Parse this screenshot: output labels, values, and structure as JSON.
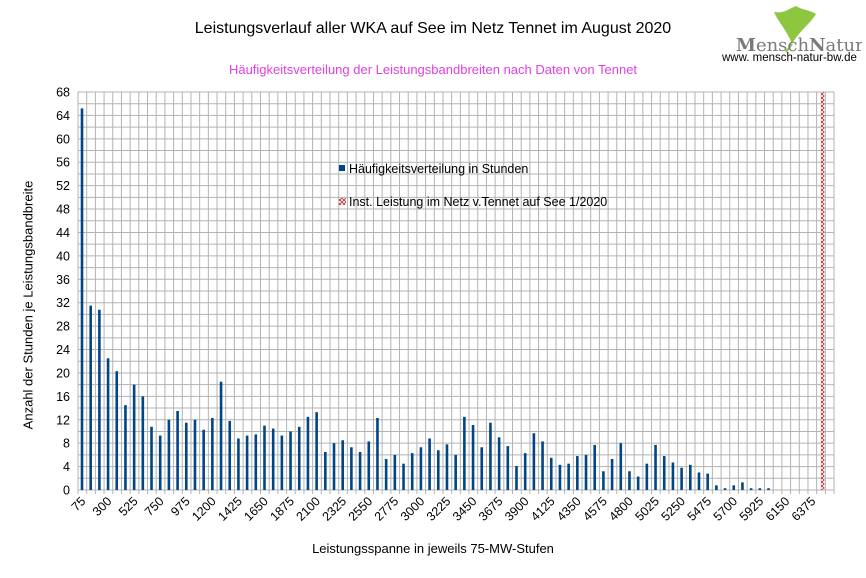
{
  "chart_data": {
    "type": "bar",
    "title": "Leistungsverlauf aller WKA auf See im Netz  Tennet im August 2020",
    "subtitle": "Häufigkeitsverteilung der Leistungsbandbreiten nach Daten von Tennet",
    "xlabel": "Leistungsspanne in jeweils 75-MW-Stufen",
    "ylabel": "Anzahl der Stunden je Leistungsbandbreite",
    "ylim": [
      0,
      68
    ],
    "yticks": [
      0,
      4,
      8,
      12,
      16,
      20,
      24,
      28,
      32,
      36,
      40,
      44,
      48,
      52,
      56,
      60,
      64,
      68
    ],
    "grid": true,
    "legend_position": "center-inside",
    "category_start": 75,
    "category_step": 75,
    "category_count": 87,
    "tick_label_every": 3,
    "series": [
      {
        "name": "Häufigkeitsverteilung in Stunden",
        "color": "#004586",
        "values": [
          65.2,
          31.5,
          30.8,
          22.5,
          20.3,
          14.5,
          18,
          16,
          10.8,
          9.3,
          12,
          13.5,
          11.5,
          12,
          10.3,
          12.3,
          18.5,
          11.8,
          8.8,
          9.3,
          9.5,
          11,
          10.5,
          9.3,
          10,
          10.8,
          12.5,
          13.3,
          6.5,
          8,
          8.5,
          7.3,
          6.5,
          8.3,
          12.3,
          5.3,
          6,
          4.5,
          6.3,
          7.3,
          8.8,
          6.8,
          7.8,
          6,
          12.5,
          11.1,
          7.3,
          11.5,
          9,
          7.5,
          4.1,
          6.3,
          9.7,
          8.3,
          5.5,
          4.3,
          4.5,
          5.8,
          6,
          7.7,
          3.2,
          5.3,
          8,
          3.2,
          2.3,
          4.5,
          7.7,
          5.8,
          4.7,
          3.8,
          4.3,
          3,
          2.8,
          0.8,
          0.3,
          0.8,
          1.3,
          0.3,
          0.3,
          0.3
        ]
      },
      {
        "name": "Inst. Leistung im Netz v.Tennet auf See 1/2020",
        "color": "#b5333a",
        "points": [
          {
            "category": 6450,
            "value": 68
          }
        ]
      }
    ]
  },
  "logo": {
    "text_a": "Mensch",
    "text_b": "Natur",
    "url": "www. mensch-natur-bw.de",
    "leaf_color": "#8dc63f"
  }
}
